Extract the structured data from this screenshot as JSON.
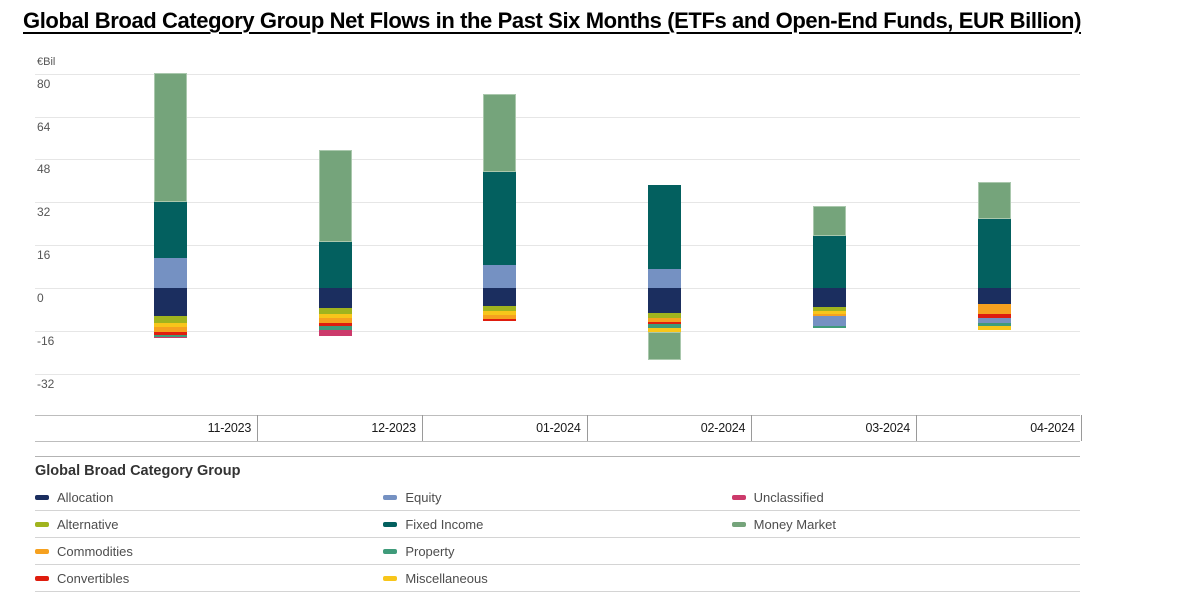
{
  "title": "Global Broad Category Group Net Flows in the Past Six Months (ETFs and Open-End Funds, EUR Billion)",
  "chart_data": {
    "type": "bar",
    "stacked": true,
    "title": "Global Broad Category Group Net Flows in the Past Six Months (ETFs and Open-End Funds, EUR Billion)",
    "unit_label": "€Bil",
    "xlabel": "",
    "ylabel": "€Bil",
    "grid": true,
    "categories": [
      "11-2023",
      "12-2023",
      "01-2024",
      "02-2024",
      "03-2024",
      "04-2024"
    ],
    "y_ticks": [
      80,
      64,
      48,
      32,
      16,
      0,
      -16,
      -32
    ],
    "ylim": [
      -47.5,
      85.5
    ],
    "series": [
      {
        "name": "Allocation",
        "color": "#1b2e5f",
        "values": [
          -10.6,
          -7.6,
          -6.8,
          -9.5,
          -7.1,
          -6.1
        ]
      },
      {
        "name": "Equity",
        "color": "#7591c2",
        "values": [
          11.0,
          0,
          8.4,
          7.0,
          -3.7,
          -1.9
        ]
      },
      {
        "name": "Unclassified",
        "color": "#cc3a6b",
        "values": [
          -0.4,
          -2.2,
          0,
          0,
          0,
          0
        ]
      },
      {
        "name": "Alternative",
        "color": "#a0b41e",
        "values": [
          -2.6,
          -2.2,
          -1.9,
          -1.9,
          -1.5,
          0
        ]
      },
      {
        "name": "Fixed Income",
        "color": "#03605f",
        "values": [
          21.0,
          17.0,
          34.8,
          31.6,
          19.3,
          25.8
        ]
      },
      {
        "name": "Money Market",
        "color": "#75a47b",
        "values": [
          48.3,
          34.6,
          29.2,
          -10.5,
          11.4,
          13.9
        ]
      },
      {
        "name": "Commodities",
        "color": "#f6a11f",
        "values": [
          -1.9,
          -1.9,
          -1.5,
          -1.5,
          -0.7,
          -3.7
        ]
      },
      {
        "name": "Property",
        "color": "#3f9b7a",
        "values": [
          -0.8,
          -1.5,
          0,
          -1.5,
          -0.9,
          -1.1
        ]
      },
      {
        "name": "Convertibles",
        "color": "#df1d0e",
        "values": [
          -1.1,
          -1.1,
          -0.7,
          -0.7,
          0,
          -1.5
        ]
      },
      {
        "name": "Miscellaneous",
        "color": "#f8c61a",
        "values": [
          -1.5,
          -1.5,
          -1.5,
          -1.5,
          -1.1,
          -1.5
        ]
      }
    ],
    "stack_order": [
      {
        "month": "11-2023",
        "pos": [
          "Equity",
          "Fixed Income",
          "Money Market"
        ],
        "neg": [
          "Allocation",
          "Alternative",
          "Miscellaneous",
          "Commodities",
          "Convertibles",
          "Property",
          "Unclassified"
        ]
      },
      {
        "month": "12-2023",
        "pos": [
          "Fixed Income",
          "Money Market"
        ],
        "neg": [
          "Allocation",
          "Alternative",
          "Miscellaneous",
          "Commodities",
          "Convertibles",
          "Property",
          "Unclassified"
        ]
      },
      {
        "month": "01-2024",
        "pos": [
          "Equity",
          "Fixed Income",
          "Money Market"
        ],
        "neg": [
          "Allocation",
          "Alternative",
          "Miscellaneous",
          "Commodities",
          "Convertibles"
        ]
      },
      {
        "month": "02-2024",
        "pos": [
          "Equity",
          "Fixed Income"
        ],
        "neg": [
          "Allocation",
          "Alternative",
          "Commodities",
          "Convertibles",
          "Property",
          "Miscellaneous",
          "Money Market"
        ]
      },
      {
        "month": "03-2024",
        "pos": [
          "Fixed Income",
          "Money Market"
        ],
        "neg": [
          "Allocation",
          "Alternative",
          "Miscellaneous",
          "Commodities",
          "Equity",
          "Property"
        ]
      },
      {
        "month": "04-2024",
        "pos": [
          "Fixed Income",
          "Money Market"
        ],
        "neg": [
          "Allocation",
          "Commodities",
          "Convertibles",
          "Equity",
          "Property",
          "Miscellaneous"
        ]
      }
    ],
    "legend": {
      "title": "Global Broad Category Group",
      "rows": [
        [
          "Allocation",
          "Equity",
          "Unclassified"
        ],
        [
          "Alternative",
          "Fixed Income",
          "Money Market"
        ],
        [
          "Commodities",
          "Property",
          ""
        ],
        [
          "Convertibles",
          "Miscellaneous",
          ""
        ]
      ]
    }
  }
}
